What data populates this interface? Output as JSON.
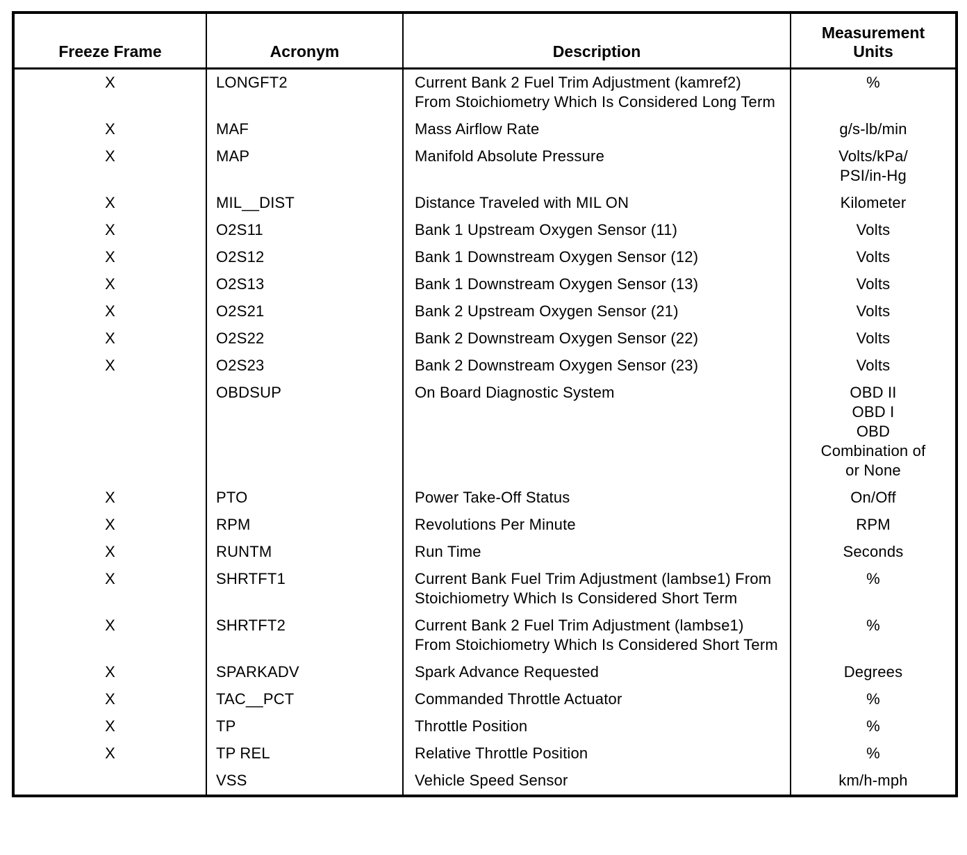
{
  "table": {
    "headers": {
      "freeze_frame": "Freeze Frame",
      "acronym": "Acronym",
      "description": "Description",
      "units": "Measurement\nUnits"
    },
    "rows": [
      {
        "freeze_frame": "X",
        "acronym": "LONGFT2",
        "description": "Current Bank 2 Fuel Trim Adjustment (kamref2) From Stoichiometry Which Is Considered Long Term",
        "units": "%"
      },
      {
        "freeze_frame": "X",
        "acronym": "MAF",
        "description": "Mass Airflow Rate",
        "units": "g/s-lb/min"
      },
      {
        "freeze_frame": "X",
        "acronym": "MAP",
        "description": "Manifold Absolute Pressure",
        "units": "Volts/kPa/\nPSI/in-Hg"
      },
      {
        "freeze_frame": "X",
        "acronym": "MIL__DIST",
        "description": "Distance Traveled with MIL ON",
        "units": "Kilometer"
      },
      {
        "freeze_frame": "X",
        "acronym": "O2S11",
        "description": "Bank 1 Upstream Oxygen Sensor (11)",
        "units": "Volts"
      },
      {
        "freeze_frame": "X",
        "acronym": "O2S12",
        "description": "Bank 1 Downstream Oxygen Sensor (12)",
        "units": "Volts"
      },
      {
        "freeze_frame": "X",
        "acronym": "O2S13",
        "description": "Bank 1 Downstream Oxygen Sensor (13)",
        "units": "Volts"
      },
      {
        "freeze_frame": "X",
        "acronym": "O2S21",
        "description": "Bank 2 Upstream Oxygen Sensor (21)",
        "units": "Volts"
      },
      {
        "freeze_frame": "X",
        "acronym": "O2S22",
        "description": "Bank 2 Downstream Oxygen Sensor (22)",
        "units": "Volts"
      },
      {
        "freeze_frame": "X",
        "acronym": "O2S23",
        "description": "Bank 2 Downstream Oxygen Sensor (23)",
        "units": "Volts"
      },
      {
        "freeze_frame": "",
        "acronym": "OBDSUP",
        "description": "On Board Diagnostic System",
        "units": "OBD II\nOBD I\nOBD\nCombination of\nor None"
      },
      {
        "freeze_frame": "X",
        "acronym": "PTO",
        "description": "Power Take-Off Status",
        "units": "On/Off"
      },
      {
        "freeze_frame": "X",
        "acronym": "RPM",
        "description": "Revolutions Per Minute",
        "units": "RPM"
      },
      {
        "freeze_frame": "X",
        "acronym": "RUNTM",
        "description": "Run Time",
        "units": "Seconds"
      },
      {
        "freeze_frame": "X",
        "acronym": "SHRTFT1",
        "description": "Current Bank Fuel Trim Adjustment (lambse1) From Stoichiometry Which Is Considered Short Term",
        "units": "%"
      },
      {
        "freeze_frame": "X",
        "acronym": "SHRTFT2",
        "description": "Current Bank 2 Fuel Trim Adjustment (lambse1) From Stoichiometry Which Is Considered Short Term",
        "units": "%"
      },
      {
        "freeze_frame": "X",
        "acronym": "SPARKADV",
        "description": "Spark Advance Requested",
        "units": "Degrees"
      },
      {
        "freeze_frame": "X",
        "acronym": "TAC__PCT",
        "description": "Commanded Throttle Actuator",
        "units": "%"
      },
      {
        "freeze_frame": "X",
        "acronym": "TP",
        "description": "Throttle Position",
        "units": "%"
      },
      {
        "freeze_frame": "X",
        "acronym": "TP REL",
        "description": "Relative Throttle Position",
        "units": "%"
      },
      {
        "freeze_frame": "",
        "acronym": "VSS",
        "description": "Vehicle Speed Sensor",
        "units": "km/h-mph"
      }
    ]
  }
}
